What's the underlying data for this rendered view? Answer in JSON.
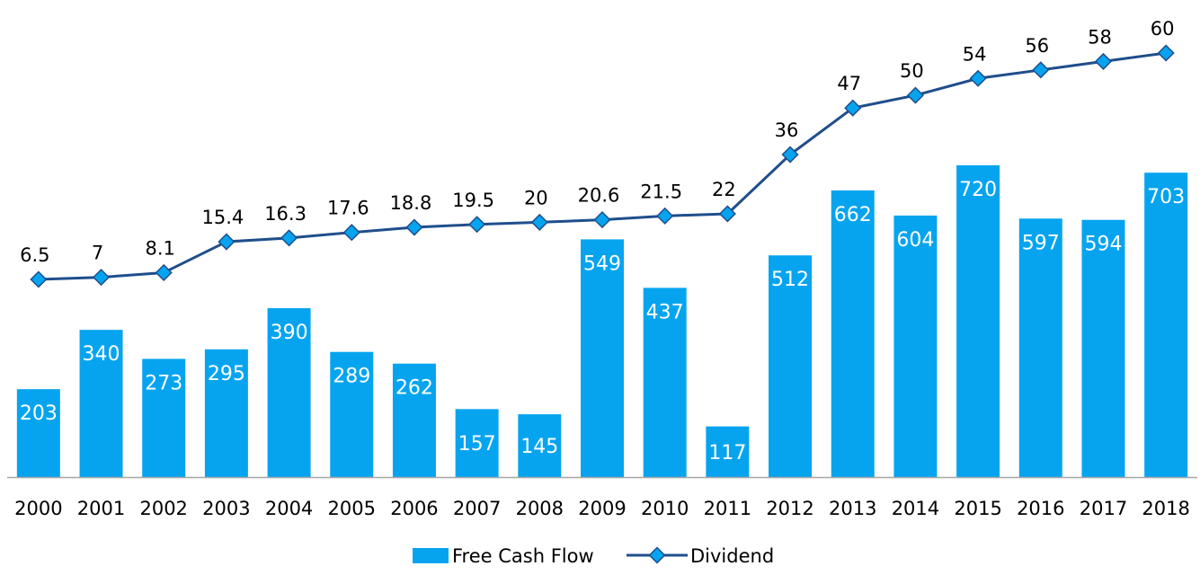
{
  "chart_data": {
    "type": "bar",
    "categories": [
      "2000",
      "2001",
      "2002",
      "2003",
      "2004",
      "2005",
      "2006",
      "2007",
      "2008",
      "2009",
      "2010",
      "2011",
      "2012",
      "2013",
      "2014",
      "2015",
      "2016",
      "2017",
      "2018"
    ],
    "series": [
      {
        "name": "Free Cash Flow",
        "type": "bar",
        "color": "#06a4ef",
        "values": [
          203,
          340,
          273,
          295,
          390,
          289,
          262,
          157,
          145,
          549,
          437,
          117,
          512,
          662,
          604,
          720,
          597,
          594,
          703
        ],
        "labels": [
          "203",
          "340",
          "273",
          "295",
          "390",
          "289",
          "262",
          "157",
          "145",
          "549",
          "437",
          "117",
          "512",
          "662",
          "604",
          "720",
          "597",
          "594",
          "703"
        ]
      },
      {
        "name": "Dividend",
        "type": "line",
        "color": "#1f4e8c",
        "marker_color": "#06a4ef",
        "values": [
          6.5,
          7,
          8.1,
          15.4,
          16.3,
          17.6,
          18.8,
          19.5,
          20,
          20.6,
          21.5,
          22,
          36,
          47,
          50,
          54,
          56,
          58,
          60
        ],
        "labels": [
          "6.5",
          "7",
          "8.1",
          "15.4",
          "16.3",
          "17.6",
          "18.8",
          "19.5",
          "20",
          "20.6",
          "21.5",
          "22",
          "36",
          "47",
          "50",
          "54",
          "56",
          "58",
          "60"
        ]
      }
    ],
    "title": "",
    "xlabel": "",
    "ylabel": "",
    "grid": false,
    "legend": {
      "position": "bottom",
      "entries": [
        "Free Cash Flow",
        "Dividend"
      ]
    },
    "axis_color": "#a6a6a6"
  }
}
